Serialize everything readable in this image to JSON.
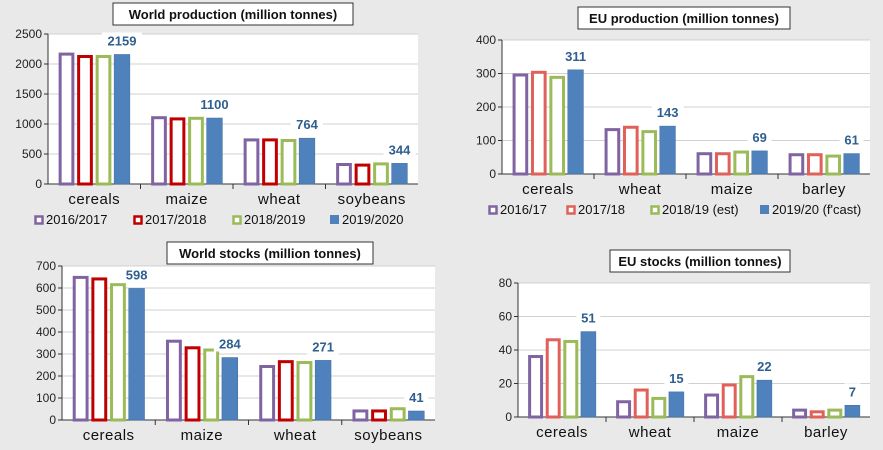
{
  "chart_data": [
    {
      "type": "bar",
      "title": "World production  (million tonnes)",
      "categories": [
        "cereals",
        "maize",
        "wheat",
        "soybeans"
      ],
      "series": [
        {
          "name": "2016/2017",
          "values": [
            2190,
            1130,
            760,
            350
          ],
          "color": "#8064a2",
          "style": "outline"
        },
        {
          "name": "2017/2018",
          "values": [
            2150,
            1110,
            760,
            340
          ],
          "color": "#c00000",
          "style": "outline"
        },
        {
          "name": "2018/2019",
          "values": [
            2150,
            1120,
            750,
            360
          ],
          "color": "#9bbb59",
          "style": "outline"
        },
        {
          "name": "2019/2020",
          "values": [
            2159,
            1100,
            764,
            344
          ],
          "color": "#4f81bd",
          "style": "filled"
        }
      ],
      "data_labels": [
        "2159",
        "1100",
        "764",
        "344"
      ],
      "ylim": [
        0,
        2500
      ],
      "yticks": [
        0,
        500,
        1000,
        1500,
        2000,
        2500
      ],
      "legend": "bottom",
      "grid": true
    },
    {
      "type": "bar",
      "title": "EU production  (million tonnes)",
      "categories": [
        "cereals",
        "wheat",
        "maize",
        "barley"
      ],
      "series": [
        {
          "name": "2016/17",
          "values": [
            300,
            137,
            65,
            62
          ],
          "color": "#8064a2",
          "style": "outline"
        },
        {
          "name": "2017/18",
          "values": [
            308,
            144,
            65,
            62
          ],
          "color": "#e0605a",
          "style": "outline"
        },
        {
          "name": "2018/19 (est)",
          "values": [
            293,
            131,
            70,
            58
          ],
          "color": "#9bbb59",
          "style": "outline"
        },
        {
          "name": "2019/20 (f'cast)",
          "values": [
            311,
            143,
            69,
            61
          ],
          "color": "#4f81bd",
          "style": "filled"
        }
      ],
      "data_labels": [
        "311",
        "143",
        "69",
        "61"
      ],
      "ylim": [
        0,
        400
      ],
      "yticks": [
        0,
        100,
        200,
        300,
        400
      ],
      "legend": "bottom",
      "grid": true
    },
    {
      "type": "bar",
      "title": "World stocks (million tonnes)",
      "categories": [
        "cereals",
        "maize",
        "wheat",
        "soybeans"
      ],
      "series": [
        {
          "name": "2016/2017",
          "values": [
            655,
            365,
            250,
            48
          ],
          "color": "#8064a2",
          "style": "outline"
        },
        {
          "name": "2017/2018",
          "values": [
            648,
            335,
            272,
            48
          ],
          "color": "#c00000",
          "style": "outline"
        },
        {
          "name": "2018/2019",
          "values": [
            622,
            325,
            268,
            58
          ],
          "color": "#9bbb59",
          "style": "outline"
        },
        {
          "name": "2019/2020",
          "values": [
            598,
            284,
            271,
            41
          ],
          "color": "#4f81bd",
          "style": "filled"
        }
      ],
      "data_labels": [
        "598",
        "284",
        "271",
        "41"
      ],
      "ylim": [
        0,
        700
      ],
      "yticks": [
        0,
        100,
        200,
        300,
        400,
        500,
        600,
        700
      ],
      "legend": "none",
      "grid": true
    },
    {
      "type": "bar",
      "title": "EU stocks (million tonnes)",
      "categories": [
        "cereals",
        "wheat",
        "maize",
        "barley"
      ],
      "series": [
        {
          "name": "2016/17",
          "values": [
            37,
            10,
            14,
            5
          ],
          "color": "#8064a2",
          "style": "outline"
        },
        {
          "name": "2017/18",
          "values": [
            47,
            17,
            20,
            4
          ],
          "color": "#e0605a",
          "style": "outline"
        },
        {
          "name": "2018/19 (est)",
          "values": [
            46,
            12,
            25,
            5
          ],
          "color": "#9bbb59",
          "style": "outline"
        },
        {
          "name": "2019/20 (f'cast)",
          "values": [
            51,
            15,
            22,
            7
          ],
          "color": "#4f81bd",
          "style": "filled"
        }
      ],
      "data_labels": [
        "51",
        "15",
        "22",
        "7"
      ],
      "ylim": [
        0,
        80
      ],
      "yticks": [
        0,
        20,
        40,
        60,
        80
      ],
      "legend": "none",
      "grid": true
    }
  ]
}
